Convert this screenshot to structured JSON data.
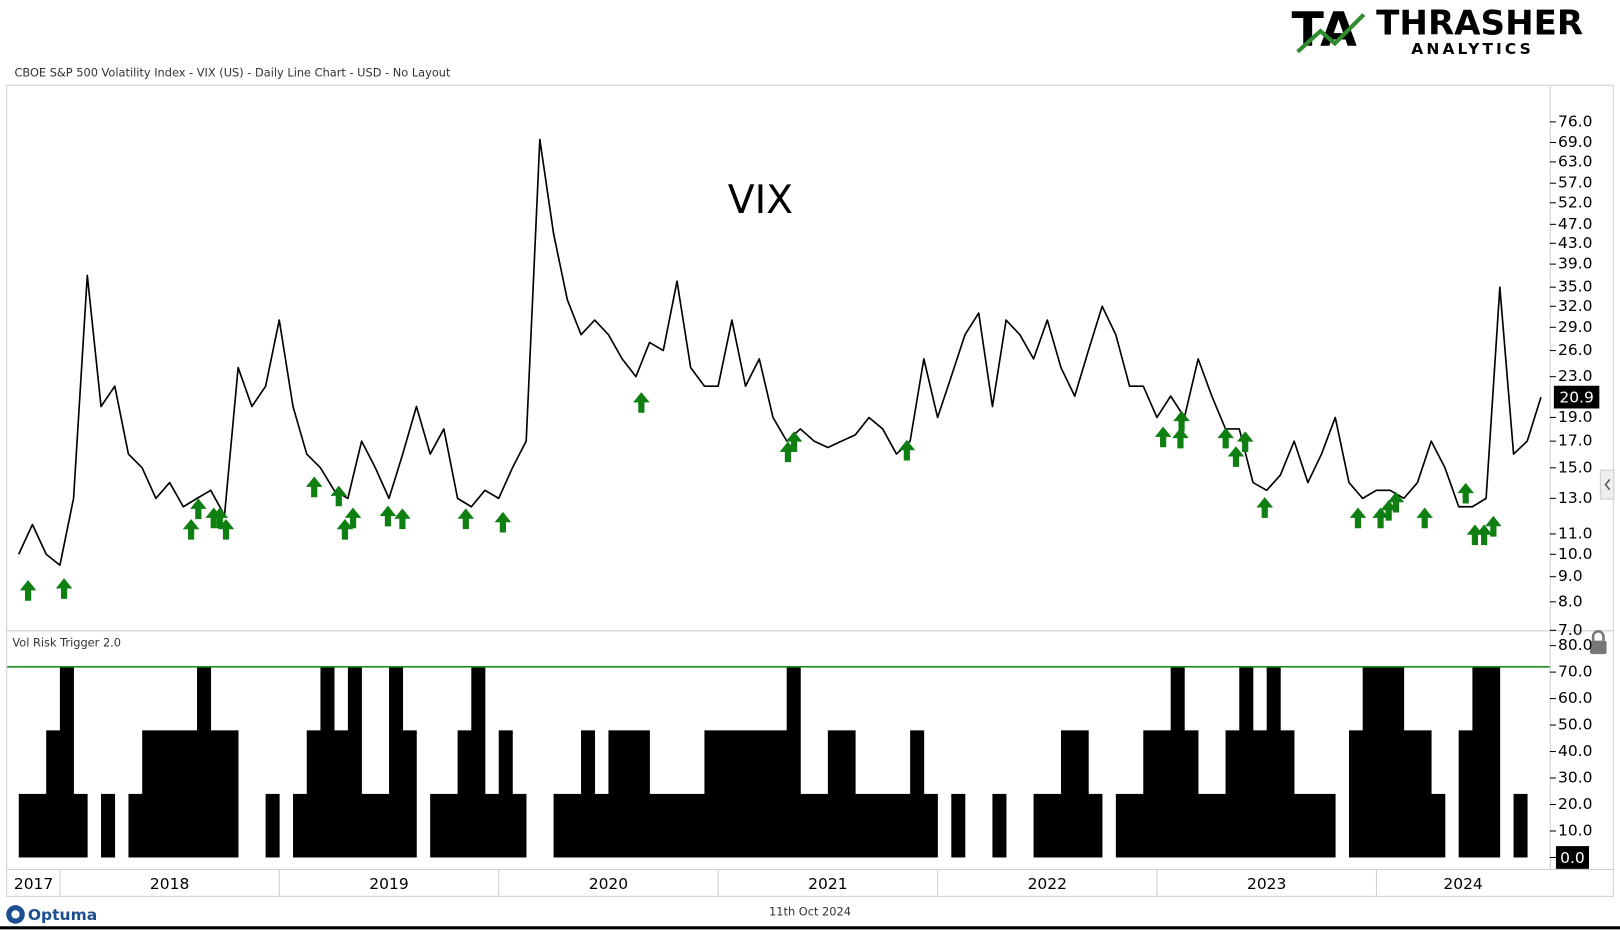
{
  "header": {
    "subtitle": "CBOE S&P 500 Volatility Index - VIX (US) - Daily Line Chart - USD - No Layout"
  },
  "logo": {
    "mark": "TA",
    "name": "THRASHER",
    "tagline": "ANALYTICS"
  },
  "footer": {
    "brand": "Optuma",
    "date": "11th Oct 2024"
  },
  "chart_data": [
    {
      "type": "line",
      "title": "VIX",
      "log_scale": true,
      "xlim": [
        2017.76,
        2024.79
      ],
      "ylim": [
        7,
        90
      ],
      "yticks": [
        {
          "value": 7,
          "label": "7.0"
        },
        {
          "value": 8,
          "label": "8.0"
        },
        {
          "value": 9,
          "label": "9.0"
        },
        {
          "value": 10,
          "label": "10.0"
        },
        {
          "value": 11,
          "label": "11.0"
        },
        {
          "value": 13,
          "label": "13.0"
        },
        {
          "value": 15,
          "label": "15.0"
        },
        {
          "value": 17,
          "label": "17.0"
        },
        {
          "value": 19,
          "label": "19.0"
        },
        {
          "value": 23,
          "label": "23.0"
        },
        {
          "value": 26,
          "label": "26.0"
        },
        {
          "value": 29,
          "label": "29.0"
        },
        {
          "value": 32,
          "label": "32.0"
        },
        {
          "value": 35,
          "label": "35.0"
        },
        {
          "value": 39,
          "label": "39.0"
        },
        {
          "value": 43,
          "label": "43.0"
        },
        {
          "value": 47,
          "label": "47.0"
        },
        {
          "value": 52,
          "label": "52.0"
        },
        {
          "value": 57,
          "label": "57.0"
        },
        {
          "value": 63,
          "label": "63.0"
        },
        {
          "value": 69,
          "label": "69.0"
        },
        {
          "value": 76,
          "label": "76.0"
        }
      ],
      "x": [
        2017.8125,
        2017.875,
        2017.9375,
        2018,
        2018.0625,
        2018.125,
        2018.1875,
        2018.25,
        2018.3125,
        2018.375,
        2018.4375,
        2018.5,
        2018.5625,
        2018.625,
        2018.6875,
        2018.75,
        2018.8125,
        2018.875,
        2018.9375,
        2019,
        2019.0625,
        2019.125,
        2019.1875,
        2019.25,
        2019.3125,
        2019.375,
        2019.4375,
        2019.5,
        2019.5625,
        2019.625,
        2019.6875,
        2019.75,
        2019.8125,
        2019.875,
        2019.9375,
        2020,
        2020.0625,
        2020.125,
        2020.1875,
        2020.25,
        2020.3125,
        2020.375,
        2020.4375,
        2020.5,
        2020.5625,
        2020.625,
        2020.6875,
        2020.75,
        2020.8125,
        2020.875,
        2020.9375,
        2021,
        2021.0625,
        2021.125,
        2021.1875,
        2021.25,
        2021.3125,
        2021.375,
        2021.4375,
        2021.5,
        2021.5625,
        2021.625,
        2021.6875,
        2021.75,
        2021.8125,
        2021.875,
        2021.9375,
        2022,
        2022.0625,
        2022.125,
        2022.1875,
        2022.25,
        2022.3125,
        2022.375,
        2022.4375,
        2022.5,
        2022.5625,
        2022.625,
        2022.6875,
        2022.75,
        2022.8125,
        2022.875,
        2022.9375,
        2023,
        2023.0625,
        2023.125,
        2023.1875,
        2023.25,
        2023.3125,
        2023.375,
        2023.4375,
        2023.5,
        2023.5625,
        2023.625,
        2023.6875,
        2023.75,
        2023.8125,
        2023.875,
        2023.9375,
        2024,
        2024.0625,
        2024.125,
        2024.1875,
        2024.25,
        2024.3125,
        2024.375,
        2024.4375,
        2024.5,
        2024.5625,
        2024.625,
        2024.6875,
        2024.75
      ],
      "series": [
        {
          "color": "#000000",
          "values": [
            10,
            11.5,
            10,
            9.5,
            13,
            37,
            20,
            22,
            16,
            15,
            13,
            14,
            12.5,
            13,
            13.5,
            12,
            24,
            20,
            22,
            30,
            20,
            16,
            15,
            13.5,
            13,
            17,
            15,
            13,
            16,
            20,
            16,
            18,
            13,
            12.5,
            13.5,
            13,
            15,
            17,
            70,
            45,
            33,
            28,
            30,
            28,
            25,
            23,
            27,
            26,
            36,
            24,
            22,
            22,
            30,
            22,
            25,
            19,
            17,
            18,
            17,
            16.5,
            17,
            17.5,
            19,
            18,
            16,
            17,
            25,
            19,
            23,
            28,
            31,
            20,
            30,
            28,
            25,
            30,
            24,
            21,
            26,
            32,
            28,
            22,
            22,
            19,
            21,
            19,
            25,
            21,
            18,
            18,
            14,
            13.5,
            14.5,
            17,
            14,
            16,
            19,
            14,
            13,
            13.5,
            13.5,
            13,
            14,
            17,
            15,
            12.5,
            12.5,
            13,
            35,
            16,
            17,
            20.9
          ]
        }
      ],
      "signals": {
        "color": "#0f7f12",
        "x": [
          2017.855,
          2018.019,
          2018.598,
          2018.631,
          2018.701,
          2018.729,
          2018.757,
          2019.159,
          2019.271,
          2019.299,
          2019.336,
          2019.495,
          2019.561,
          2019.85,
          2020.019,
          2020.65,
          2021.318,
          2021.346,
          2021.86,
          2023.028,
          2023.112,
          2023.107,
          2023.313,
          2023.36,
          2023.402,
          2023.491,
          2023.916,
          2024.019,
          2024.056,
          2024.089,
          2024.22,
          2024.407,
          2024.449,
          2024.491,
          2024.533
        ],
        "values": [
          8.86,
          8.94,
          11.8,
          12.99,
          12.45,
          12.45,
          11.8,
          14.4,
          13.8,
          11.8,
          12.45,
          12.56,
          12.4,
          12.4,
          12.2,
          21.4,
          16.97,
          17.8,
          17.1,
          18.2,
          19.6,
          18.1,
          18.1,
          16.6,
          17.8,
          13.07,
          12.45,
          12.45,
          12.9,
          13.4,
          12.45,
          13.98,
          11.5,
          11.5,
          11.97
        ]
      }
    },
    {
      "type": "step-area",
      "title": "Vol Risk Trigger 2.0",
      "color": "#000000",
      "threshold": 72,
      "threshold_color": "#1e8c1e",
      "last_value_label": "0.0",
      "xlim": [
        2017.76,
        2024.79
      ],
      "ylim": [
        -2,
        85
      ],
      "xticks": [
        2018,
        2019,
        2020,
        2021,
        2022,
        2023,
        2024
      ],
      "year_labels": [
        2017,
        2018,
        2019,
        2020,
        2021,
        2022,
        2023,
        2024
      ],
      "yticks": [
        {
          "value": 0,
          "label": "0.0"
        },
        {
          "value": 10,
          "label": "10.0"
        },
        {
          "value": 20,
          "label": "20.0"
        },
        {
          "value": 30,
          "label": "30.0"
        },
        {
          "value": 40,
          "label": "40.0"
        },
        {
          "value": 50,
          "label": "50.0"
        },
        {
          "value": 60,
          "label": "60.0"
        },
        {
          "value": 70,
          "label": "70.0"
        },
        {
          "value": 80,
          "label": "80.0"
        }
      ],
      "x": [
        2017.8125,
        2017.875,
        2017.9375,
        2018,
        2018.0625,
        2018.125,
        2018.1875,
        2018.25,
        2018.3125,
        2018.375,
        2018.4375,
        2018.5,
        2018.5625,
        2018.625,
        2018.6875,
        2018.75,
        2018.8125,
        2018.875,
        2018.9375,
        2019,
        2019.0625,
        2019.125,
        2019.1875,
        2019.25,
        2019.3125,
        2019.375,
        2019.4375,
        2019.5,
        2019.5625,
        2019.625,
        2019.6875,
        2019.75,
        2019.8125,
        2019.875,
        2019.9375,
        2020,
        2020.0625,
        2020.125,
        2020.1875,
        2020.25,
        2020.3125,
        2020.375,
        2020.4375,
        2020.5,
        2020.5625,
        2020.625,
        2020.6875,
        2020.75,
        2020.8125,
        2020.875,
        2020.9375,
        2021,
        2021.0625,
        2021.125,
        2021.1875,
        2021.25,
        2021.3125,
        2021.375,
        2021.4375,
        2021.5,
        2021.5625,
        2021.625,
        2021.6875,
        2021.75,
        2021.8125,
        2021.875,
        2021.9375,
        2022,
        2022.0625,
        2022.125,
        2022.1875,
        2022.25,
        2022.3125,
        2022.375,
        2022.4375,
        2022.5,
        2022.5625,
        2022.625,
        2022.6875,
        2022.75,
        2022.8125,
        2022.875,
        2022.9375,
        2023,
        2023.0625,
        2023.125,
        2023.1875,
        2023.25,
        2023.3125,
        2023.375,
        2023.4375,
        2023.5,
        2023.5625,
        2023.625,
        2023.6875,
        2023.75,
        2023.8125,
        2023.875,
        2023.9375,
        2024,
        2024.0625,
        2024.125,
        2024.1875,
        2024.25,
        2024.3125,
        2024.375,
        2024.4375,
        2024.5,
        2024.5625,
        2024.625,
        2024.6875,
        2024.75
      ],
      "values": [
        24,
        24,
        48,
        72,
        24,
        0,
        24,
        0,
        24,
        48,
        48,
        48,
        48,
        72,
        48,
        48,
        0,
        0,
        24,
        0,
        24,
        48,
        72,
        48,
        72,
        24,
        24,
        72,
        48,
        0,
        24,
        24,
        48,
        72,
        24,
        48,
        24,
        0,
        0,
        24,
        24,
        48,
        24,
        48,
        48,
        48,
        24,
        24,
        24,
        24,
        48,
        48,
        48,
        48,
        48,
        48,
        72,
        24,
        24,
        48,
        48,
        24,
        24,
        24,
        24,
        48,
        24,
        0,
        24,
        0,
        0,
        24,
        0,
        0,
        24,
        24,
        48,
        48,
        24,
        0,
        24,
        24,
        48,
        48,
        72,
        48,
        24,
        24,
        48,
        72,
        48,
        72,
        48,
        24,
        24,
        24,
        0,
        48,
        72,
        72,
        72,
        48,
        48,
        24,
        0,
        48,
        72,
        72,
        0,
        24,
        0,
        0
      ]
    }
  ]
}
